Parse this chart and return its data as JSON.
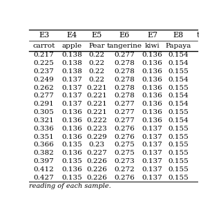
{
  "col_headers": [
    "E3",
    "E4",
    "E5",
    "E6",
    "E7",
    "E8"
  ],
  "sub_headers": [
    "carrot",
    "apple",
    "Pear",
    "tangerine",
    "kiwi",
    "Papaya"
  ],
  "rows": [
    [
      0.217,
      0.138,
      0.22,
      0.277,
      0.136,
      0.154
    ],
    [
      0.225,
      0.138,
      0.22,
      0.278,
      0.136,
      0.154
    ],
    [
      0.237,
      0.138,
      0.22,
      0.278,
      0.136,
      0.155
    ],
    [
      0.249,
      0.137,
      0.22,
      0.278,
      0.136,
      0.154
    ],
    [
      0.262,
      0.137,
      0.221,
      0.278,
      0.136,
      0.155
    ],
    [
      0.277,
      0.137,
      0.221,
      0.278,
      0.136,
      0.154
    ],
    [
      0.291,
      0.137,
      0.221,
      0.277,
      0.136,
      0.154
    ],
    [
      0.305,
      0.136,
      0.221,
      0.277,
      0.136,
      0.155
    ],
    [
      0.321,
      0.136,
      0.222,
      0.277,
      0.136,
      0.154
    ],
    [
      0.336,
      0.136,
      0.223,
      0.276,
      0.137,
      0.155
    ],
    [
      0.351,
      0.136,
      0.229,
      0.276,
      0.137,
      0.155
    ],
    [
      0.366,
      0.135,
      0.23,
      0.275,
      0.137,
      0.155
    ],
    [
      0.382,
      0.136,
      0.227,
      0.275,
      0.137,
      0.155
    ],
    [
      0.397,
      0.135,
      0.226,
      0.273,
      0.137,
      0.155
    ],
    [
      0.412,
      0.136,
      0.226,
      0.272,
      0.137,
      0.155
    ],
    [
      0.427,
      0.135,
      0.226,
      0.276,
      0.137,
      0.155
    ]
  ],
  "footnote": "reading of each sample.",
  "bg_color": "#ffffff",
  "header_line_color": "#000000",
  "text_color": "#000000",
  "font_size": 7.5,
  "header_font_size": 8.0
}
